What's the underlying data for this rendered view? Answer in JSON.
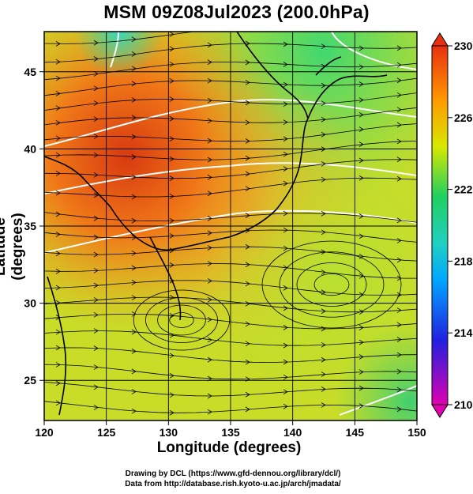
{
  "title": "MSM 09Z08Jul2023 (200.0hPa)",
  "xaxis": {
    "label": "Longitude (degrees)",
    "ticks": [
      "120",
      "125",
      "130",
      "135",
      "140",
      "145",
      "150"
    ],
    "range": [
      120,
      150
    ]
  },
  "yaxis": {
    "label": "Latitude  (degrees)",
    "ticks": [
      "25",
      "30",
      "35",
      "40",
      "45"
    ],
    "range": [
      22.4,
      47.6
    ]
  },
  "colorbar": {
    "ticks": [
      "210",
      "214",
      "218",
      "222",
      "226",
      "230"
    ],
    "range": [
      210,
      230
    ],
    "colors": [
      "#e000b0",
      "#2020e0",
      "#00c8ff",
      "#20d060",
      "#d8e800",
      "#ff9800",
      "#e83010"
    ]
  },
  "credits": {
    "line1": "Drawing by DCL (https://www.gfd-dennou.org/library/dcl/)",
    "line2": "Data from http://database.rish.kyoto-u.ac.jp/arch/jmadata/"
  }
}
